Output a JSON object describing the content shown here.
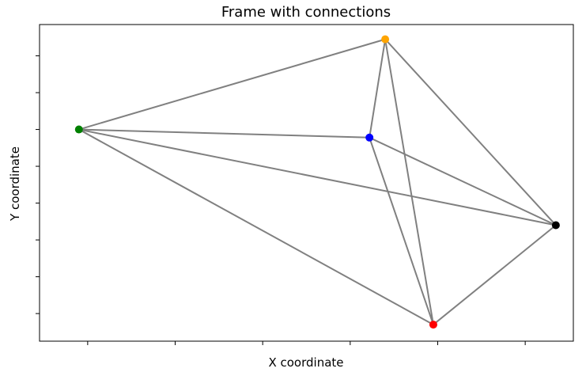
{
  "chart_data": {
    "type": "scatter",
    "title": "Frame with connections",
    "xlabel": "X coordinate",
    "ylabel": "Y coordinate",
    "show_tick_labels": false,
    "grid": false,
    "xlim": [
      -0.55,
      5.55
    ],
    "ylim": [
      -0.75,
      7.85
    ],
    "x_ticks": [
      0,
      1,
      2,
      3,
      4,
      5
    ],
    "y_ticks": [
      0,
      1,
      2,
      3,
      4,
      5,
      6,
      7
    ],
    "points": [
      {
        "x": -0.1,
        "y": 5.0,
        "color": "#008000"
      },
      {
        "x": 3.4,
        "y": 7.45,
        "color": "#FFA500"
      },
      {
        "x": 3.22,
        "y": 4.78,
        "color": "#0000FF"
      },
      {
        "x": 5.35,
        "y": 2.4,
        "color": "#000000"
      },
      {
        "x": 3.95,
        "y": -0.3,
        "color": "#FF0000"
      }
    ],
    "edges": [
      [
        0,
        1
      ],
      [
        0,
        2
      ],
      [
        0,
        3
      ],
      [
        0,
        4
      ],
      [
        1,
        2
      ],
      [
        1,
        3
      ],
      [
        1,
        4
      ],
      [
        2,
        3
      ],
      [
        2,
        4
      ],
      [
        3,
        4
      ]
    ],
    "edge_color": "#808080"
  }
}
